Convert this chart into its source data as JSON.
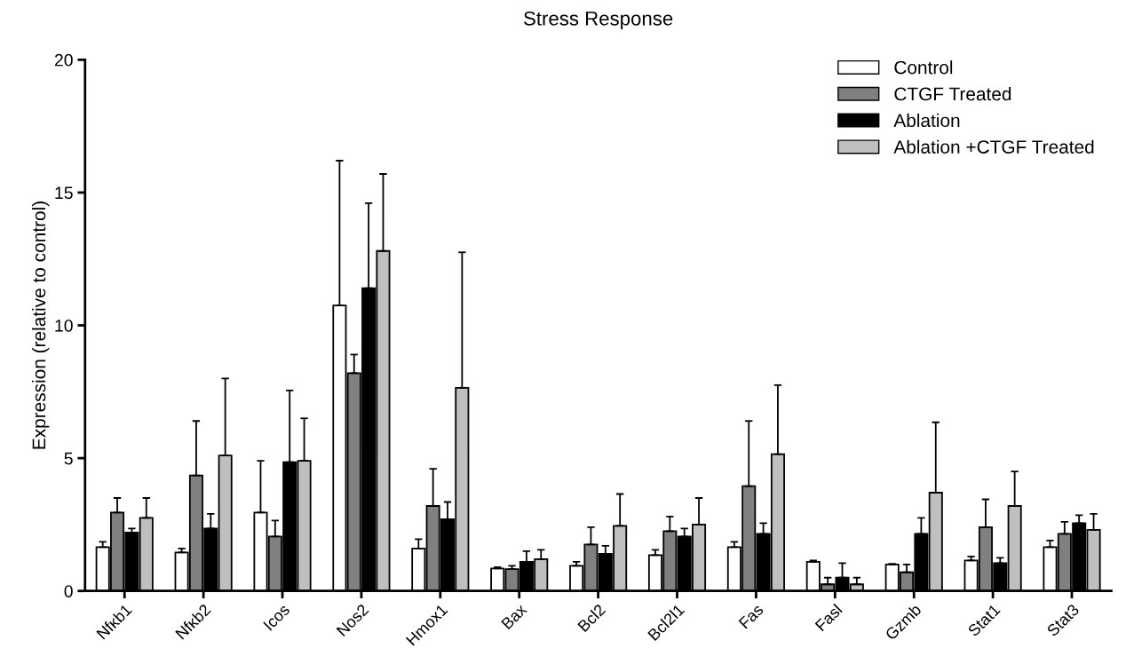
{
  "chart_data": {
    "type": "bar",
    "title": "Stress Response",
    "ylabel": "Expression (relative to control)",
    "categories": [
      "Nfκb1",
      "Nfκb2",
      "Icos",
      "Nos2",
      "Hmox1",
      "Bax",
      "Bcl2",
      "Bcl2l1",
      "Fas",
      "Fasl",
      "Gzmb",
      "Stat1",
      "Stat3"
    ],
    "ylim": [
      0,
      20
    ],
    "yticks": [
      0,
      5,
      10,
      15,
      20
    ],
    "grid": false,
    "legend": "top right",
    "series": [
      {
        "name": "Control",
        "color": "#ffffff",
        "values": [
          1.65,
          1.45,
          2.95,
          10.75,
          1.6,
          0.85,
          0.95,
          1.35,
          1.65,
          1.1,
          1.0,
          1.15,
          1.65
        ],
        "errors": [
          [
            1.65,
            1.85
          ],
          [
            1.45,
            1.6
          ],
          [
            2.95,
            4.9
          ],
          [
            10.75,
            16.2
          ],
          [
            1.6,
            1.95
          ],
          [
            0.85,
            0.9
          ],
          [
            0.95,
            1.1
          ],
          [
            1.35,
            1.55
          ],
          [
            1.65,
            1.85
          ],
          [
            1.1,
            1.15
          ],
          [
            1.0,
            1.02
          ],
          [
            1.15,
            1.3
          ],
          [
            1.65,
            1.9
          ]
        ]
      },
      {
        "name": "CTGF Treated",
        "color": "#808080",
        "values": [
          2.95,
          4.35,
          2.05,
          8.2,
          3.2,
          0.82,
          1.75,
          2.25,
          3.95,
          0.25,
          0.7,
          2.4,
          2.15
        ],
        "errors": [
          [
            2.95,
            3.5
          ],
          [
            4.35,
            6.4
          ],
          [
            2.05,
            2.65
          ],
          [
            8.2,
            8.9
          ],
          [
            3.2,
            4.6
          ],
          [
            0.82,
            0.95
          ],
          [
            1.75,
            2.4
          ],
          [
            2.25,
            2.8
          ],
          [
            3.95,
            6.4
          ],
          [
            0.25,
            0.5
          ],
          [
            0.7,
            1.0
          ],
          [
            2.4,
            3.45
          ],
          [
            2.15,
            2.6
          ]
        ]
      },
      {
        "name": "Ablation",
        "color": "#000000",
        "values": [
          2.2,
          2.35,
          4.85,
          11.4,
          2.7,
          1.1,
          1.4,
          2.05,
          2.15,
          0.5,
          2.15,
          1.05,
          2.55
        ],
        "errors": [
          [
            2.2,
            2.35
          ],
          [
            2.35,
            2.9
          ],
          [
            4.85,
            7.55
          ],
          [
            11.4,
            14.6
          ],
          [
            2.7,
            3.35
          ],
          [
            1.1,
            1.5
          ],
          [
            1.4,
            1.7
          ],
          [
            2.05,
            2.35
          ],
          [
            2.15,
            2.55
          ],
          [
            0.5,
            1.05
          ],
          [
            2.15,
            2.75
          ],
          [
            1.05,
            1.25
          ],
          [
            2.55,
            2.85
          ]
        ]
      },
      {
        "name": "Ablation +CTGF Treated",
        "color": "#bfbfbf",
        "values": [
          2.75,
          5.1,
          4.9,
          12.8,
          7.65,
          1.2,
          2.45,
          2.5,
          5.15,
          0.25,
          3.7,
          3.2,
          2.3
        ],
        "errors": [
          [
            2.75,
            3.5
          ],
          [
            5.1,
            8.0
          ],
          [
            4.9,
            6.5
          ],
          [
            12.8,
            15.7
          ],
          [
            7.65,
            12.75
          ],
          [
            1.2,
            1.55
          ],
          [
            2.45,
            3.65
          ],
          [
            2.5,
            3.5
          ],
          [
            5.15,
            7.75
          ],
          [
            0.25,
            0.5
          ],
          [
            3.7,
            6.35
          ],
          [
            3.2,
            4.5
          ],
          [
            2.3,
            2.9
          ]
        ]
      }
    ]
  }
}
